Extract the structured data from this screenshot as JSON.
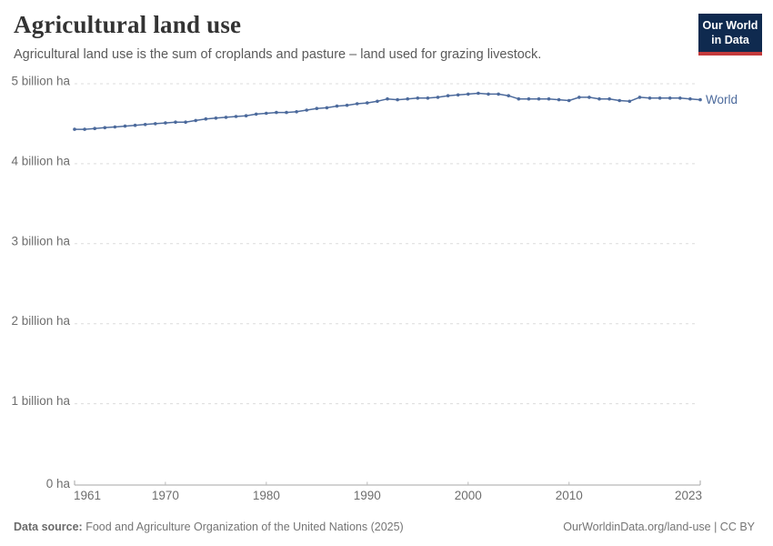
{
  "header": {
    "title": "Agricultural land use",
    "subtitle": "Agricultural land use is the sum of croplands and pasture – land used for grazing livestock."
  },
  "logo": {
    "line1": "Our World",
    "line2": "in Data",
    "bg_color": "#0F2A4F",
    "bar_color": "#C43A3C"
  },
  "chart_data": {
    "type": "line",
    "title": "Agricultural land use",
    "unit": "billion ha",
    "xlabel": "",
    "ylabel": "",
    "grid": true,
    "legend_position": "end-of-line",
    "x_range": [
      1961,
      2023
    ],
    "ylim": [
      0,
      5
    ],
    "years": [
      1961,
      1962,
      1963,
      1964,
      1965,
      1966,
      1967,
      1968,
      1969,
      1970,
      1971,
      1972,
      1973,
      1974,
      1975,
      1976,
      1977,
      1978,
      1979,
      1980,
      1981,
      1982,
      1983,
      1984,
      1985,
      1986,
      1987,
      1988,
      1989,
      1990,
      1991,
      1992,
      1993,
      1994,
      1995,
      1996,
      1997,
      1998,
      1999,
      2000,
      2001,
      2002,
      2003,
      2004,
      2005,
      2006,
      2007,
      2008,
      2009,
      2010,
      2011,
      2012,
      2013,
      2014,
      2015,
      2016,
      2017,
      2018,
      2019,
      2020,
      2021,
      2022,
      2023
    ],
    "series": [
      {
        "name": "World",
        "color": "#4C6A9C",
        "values": [
          4.43,
          4.43,
          4.44,
          4.45,
          4.46,
          4.47,
          4.48,
          4.49,
          4.5,
          4.51,
          4.52,
          4.52,
          4.54,
          4.56,
          4.57,
          4.58,
          4.59,
          4.6,
          4.62,
          4.63,
          4.64,
          4.64,
          4.65,
          4.67,
          4.69,
          4.7,
          4.72,
          4.73,
          4.75,
          4.76,
          4.78,
          4.81,
          4.8,
          4.81,
          4.82,
          4.82,
          4.83,
          4.85,
          4.86,
          4.87,
          4.88,
          4.87,
          4.87,
          4.85,
          4.81,
          4.81,
          4.81,
          4.81,
          4.8,
          4.79,
          4.83,
          4.83,
          4.81,
          4.81,
          4.79,
          4.78,
          4.83,
          4.82,
          4.82,
          4.82,
          4.82,
          4.81,
          4.8
        ]
      }
    ],
    "yticks": [
      {
        "value": 0,
        "label": "0 ha"
      },
      {
        "value": 1,
        "label": "1 billion ha"
      },
      {
        "value": 2,
        "label": "2 billion ha"
      },
      {
        "value": 3,
        "label": "3 billion ha"
      },
      {
        "value": 4,
        "label": "4 billion ha"
      },
      {
        "value": 5,
        "label": "5 billion ha"
      }
    ],
    "xticks": [
      {
        "year": 1961,
        "label": "1961",
        "align": "start",
        "edge": true
      },
      {
        "year": 1970,
        "label": "1970",
        "align": "middle",
        "edge": false
      },
      {
        "year": 1980,
        "label": "1980",
        "align": "middle",
        "edge": false
      },
      {
        "year": 1990,
        "label": "1990",
        "align": "middle",
        "edge": false
      },
      {
        "year": 2000,
        "label": "2000",
        "align": "middle",
        "edge": false
      },
      {
        "year": 2010,
        "label": "2010",
        "align": "middle",
        "edge": false
      },
      {
        "year": 2023,
        "label": "2023",
        "align": "end",
        "edge": true
      }
    ],
    "colors": {
      "grid": "#dcdcdc",
      "axis": "#a5a5a5",
      "interior_tick": "#bbbbbb",
      "tick_label": "#6e6e6e"
    }
  },
  "footer": {
    "source_label": "Data source:",
    "source_text": " Food and Agriculture Organization of the United Nations (2025)",
    "link_text": "OurWorldinData.org/land-use | CC BY"
  }
}
